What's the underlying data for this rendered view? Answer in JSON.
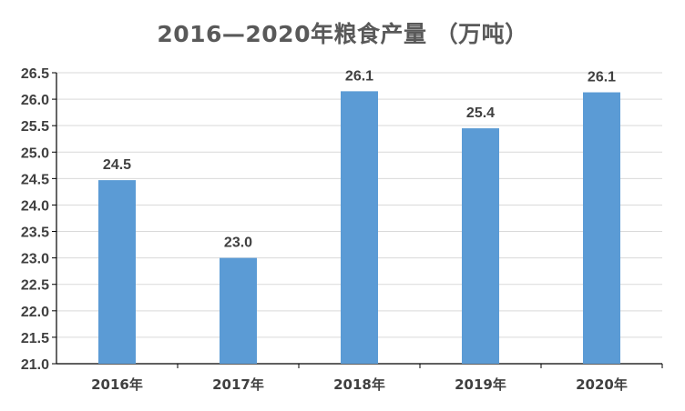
{
  "chart_data": {
    "type": "bar",
    "title": "2016—2020年粮食产量 （万吨）",
    "xlabel": "",
    "ylabel": "",
    "categories": [
      "2016年",
      "2017年",
      "2018年",
      "2019年",
      "2020年"
    ],
    "values": [
      24.47,
      23.0,
      26.15,
      25.45,
      26.13
    ],
    "data_labels": [
      "24.5",
      "23.0",
      "26.1",
      "25.4",
      "26.1"
    ],
    "ylim": [
      21.0,
      26.5
    ],
    "yticks": [
      "21.0",
      "21.5",
      "22.0",
      "22.5",
      "23.0",
      "23.5",
      "24.0",
      "24.5",
      "25.0",
      "25.5",
      "26.0",
      "26.5"
    ],
    "grid": true,
    "bar_color": "#5B9BD5",
    "grid_color": "#D9D9D9",
    "axis_color": "#000000"
  }
}
